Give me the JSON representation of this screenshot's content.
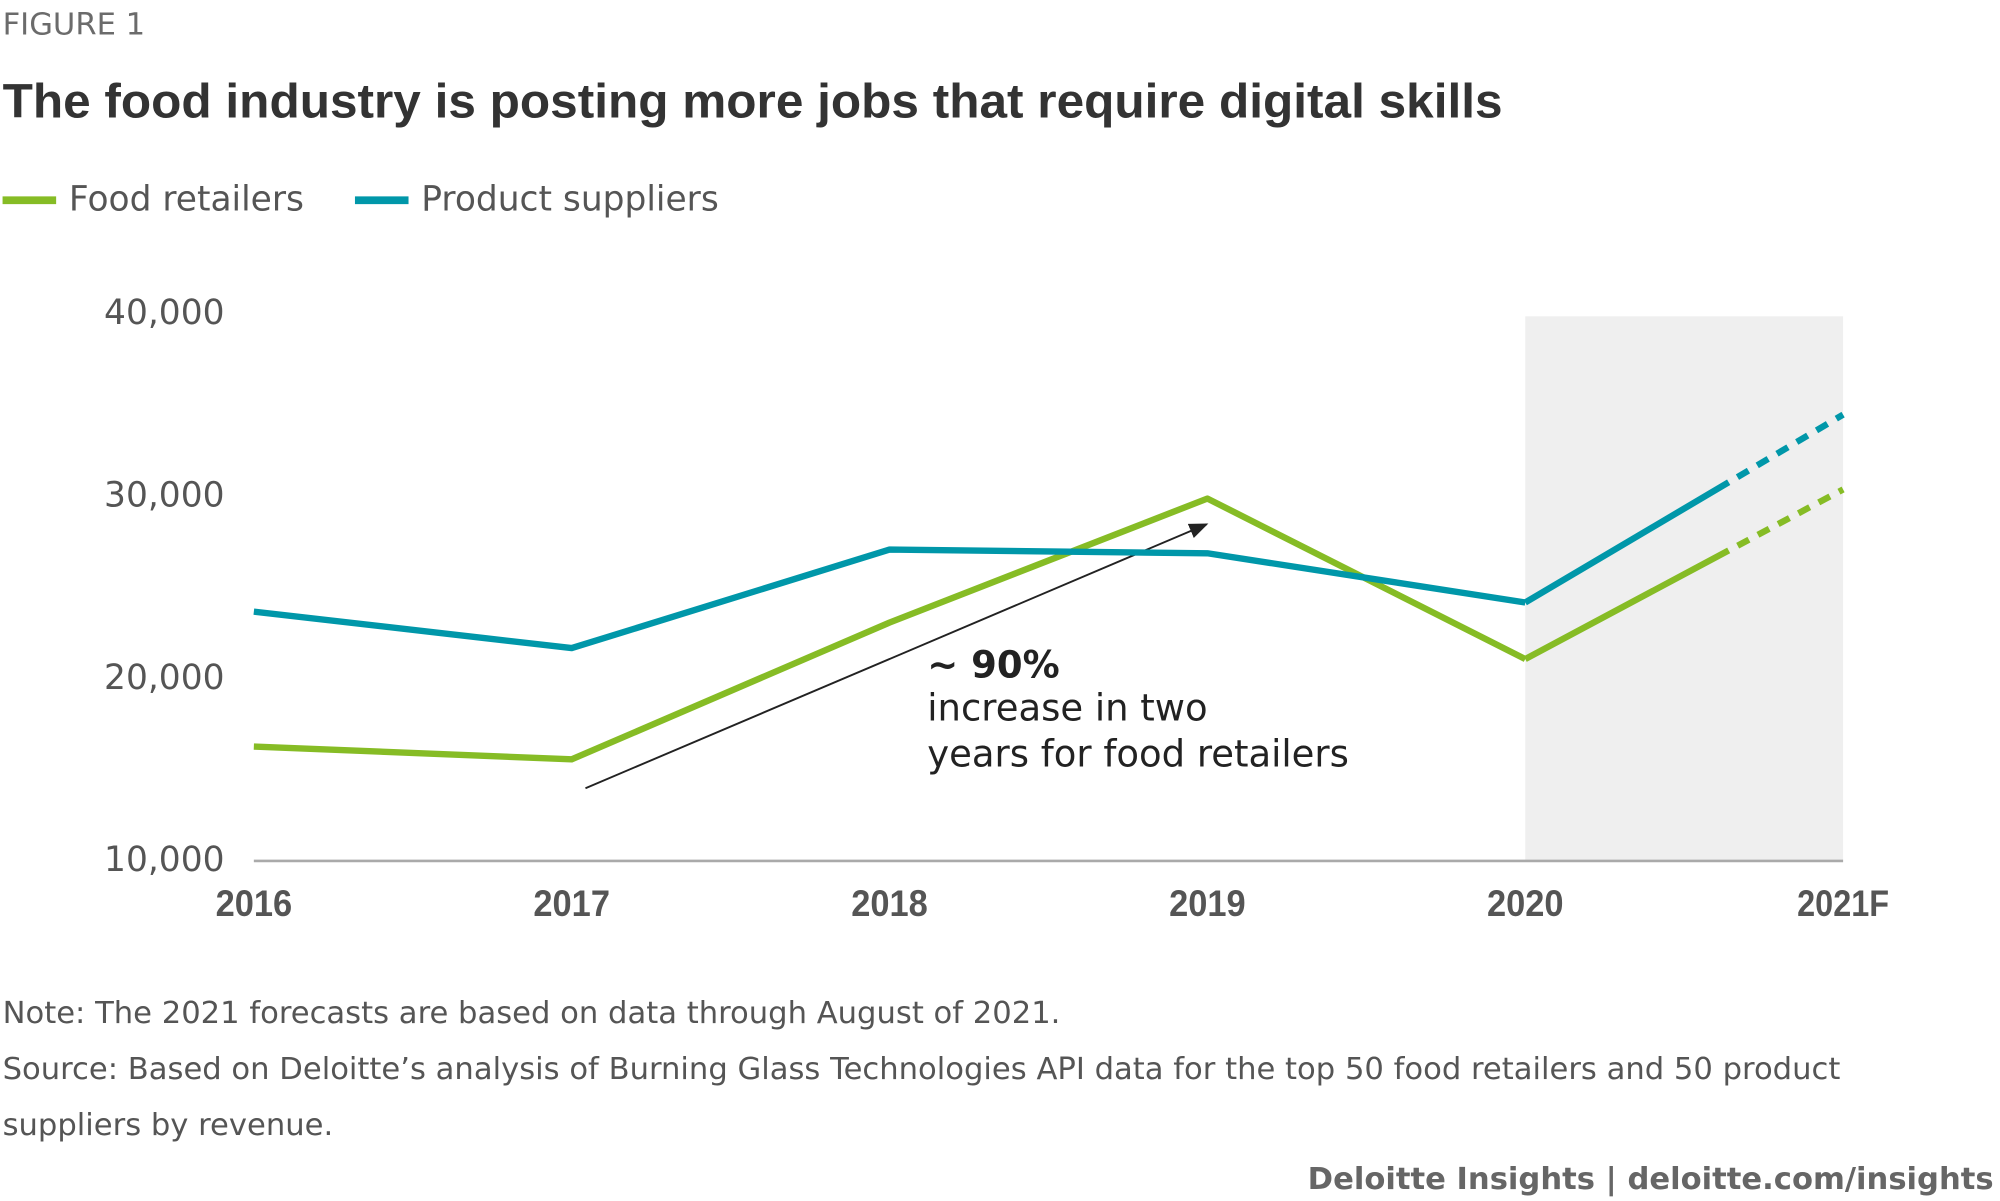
{
  "figure_label": "FIGURE 1",
  "chart_data": {
    "type": "line",
    "title": "The food industry is posting more jobs that require digital skills",
    "categories": [
      "2016",
      "2017",
      "2018",
      "2019",
      "2020",
      "2021F"
    ],
    "series": [
      {
        "name": "Food retailers",
        "color": "#86bc25",
        "values": [
          16200,
          15500,
          23000,
          29800,
          21000,
          30300
        ]
      },
      {
        "name": "Product suppliers",
        "color": "#0097a9",
        "values": [
          23600,
          21600,
          27000,
          26800,
          24100,
          34400
        ]
      }
    ],
    "ylim": [
      10000,
      40000
    ],
    "yticks": [
      {
        "value": 10000,
        "label": "10,000"
      },
      {
        "value": 20000,
        "label": "20,000"
      },
      {
        "value": 30000,
        "label": "30,000"
      },
      {
        "value": 40000,
        "label": "40,000"
      }
    ],
    "grid": false,
    "legend": "top-left",
    "highlight_categories": [
      4,
      5
    ],
    "annotation": {
      "value": "~ 90%",
      "text": [
        "increase in two",
        "years for food retailers"
      ]
    }
  },
  "notes": [
    "Note: The 2021 forecasts are based on data through August of 2021.",
    "Source: Based on Deloitte’s analysis of Burning Glass Technologies API data for the top 50 food retailers and 50 product",
    "suppliers by revenue."
  ],
  "credit": "Deloitte Insights | deloitte.com/insights"
}
